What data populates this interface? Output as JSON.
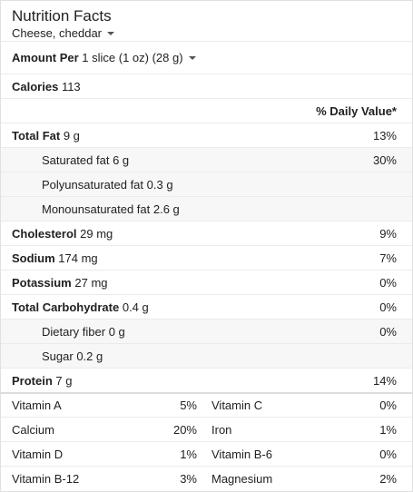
{
  "header": {
    "title": "Nutrition Facts",
    "food": "Cheese, cheddar"
  },
  "amount_per": {
    "label": "Amount Per",
    "serving": "1 slice (1 oz) (28 g)"
  },
  "calories": {
    "label": "Calories",
    "value": "113"
  },
  "daily_value_header": "% Daily Value*",
  "nutrients": [
    {
      "name": "Total Fat",
      "amount": "9 g",
      "pct": "13%",
      "bold": true
    },
    {
      "name": "Saturated fat",
      "amount": "6 g",
      "pct": "30%",
      "bold": false
    },
    {
      "name": "Polyunsaturated fat",
      "amount": "0.3 g",
      "pct": "",
      "bold": false
    },
    {
      "name": "Monounsaturated fat",
      "amount": "2.6 g",
      "pct": "",
      "bold": false
    },
    {
      "name": "Cholesterol",
      "amount": "29 mg",
      "pct": "9%",
      "bold": true
    },
    {
      "name": "Sodium",
      "amount": "174 mg",
      "pct": "7%",
      "bold": true
    },
    {
      "name": "Potassium",
      "amount": "27 mg",
      "pct": "0%",
      "bold": true
    },
    {
      "name": "Total Carbohydrate",
      "amount": "0.4 g",
      "pct": "0%",
      "bold": true
    },
    {
      "name": "Dietary fiber",
      "amount": "0 g",
      "pct": "0%",
      "bold": false
    },
    {
      "name": "Sugar",
      "amount": "0.2 g",
      "pct": "",
      "bold": false
    },
    {
      "name": "Protein",
      "amount": "7 g",
      "pct": "14%",
      "bold": true
    }
  ],
  "vitamins": [
    {
      "left_name": "Vitamin A",
      "left_pct": "5%",
      "right_name": "Vitamin C",
      "right_pct": "0%"
    },
    {
      "left_name": "Calcium",
      "left_pct": "20%",
      "right_name": "Iron",
      "right_pct": "1%"
    },
    {
      "left_name": "Vitamin D",
      "left_pct": "1%",
      "right_name": "Vitamin B-6",
      "right_pct": "0%"
    },
    {
      "left_name": "Vitamin B-12",
      "left_pct": "3%",
      "right_name": "Magnesium",
      "right_pct": "2%"
    }
  ],
  "colors": {
    "row_shade": "#f7f7f7",
    "divider": "#ebebeb",
    "text": "#212121"
  }
}
